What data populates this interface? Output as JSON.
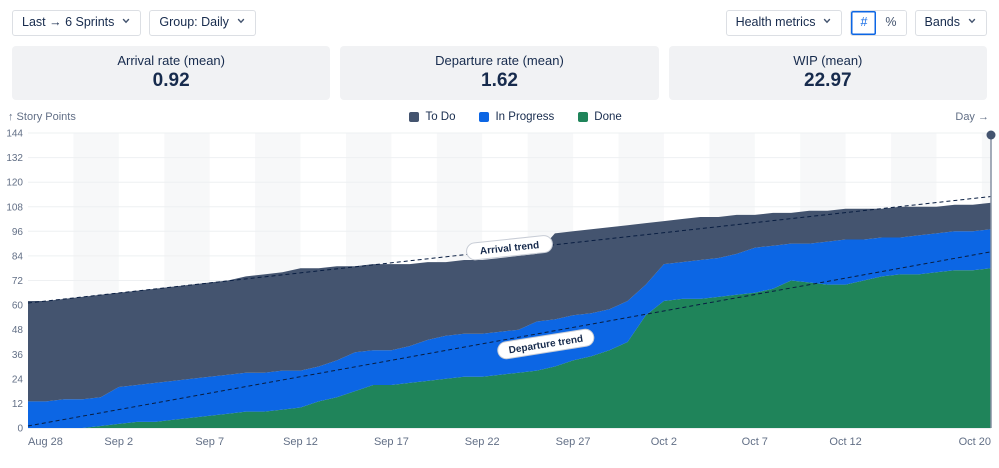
{
  "toolbar": {
    "sprint_range": "Last → 6 Sprints",
    "group": "Group: Daily",
    "health_metrics": "Health metrics",
    "number_toggle": "#",
    "percent_toggle": "%",
    "bands": "Bands"
  },
  "stats": [
    {
      "label": "Arrival rate (mean)",
      "value": "0.92"
    },
    {
      "label": "Departure rate (mean)",
      "value": "1.62"
    },
    {
      "label": "WIP (mean)",
      "value": "22.97"
    }
  ],
  "chart_data": {
    "type": "area",
    "stacked": true,
    "y_axis": {
      "min": 0,
      "max": 144,
      "step": 12,
      "title": "↑ Story Points"
    },
    "x_axis": {
      "title": "Day →",
      "ticks": [
        {
          "day": 0,
          "label": "Aug 28"
        },
        {
          "day": 5,
          "label": "Sep 2"
        },
        {
          "day": 10,
          "label": "Sep 7"
        },
        {
          "day": 15,
          "label": "Sep 12"
        },
        {
          "day": 20,
          "label": "Sep 17"
        },
        {
          "day": 25,
          "label": "Sep 22"
        },
        {
          "day": 30,
          "label": "Sep 27"
        },
        {
          "day": 35,
          "label": "Oct 2"
        },
        {
          "day": 40,
          "label": "Oct 7"
        },
        {
          "day": 45,
          "label": "Oct 12"
        },
        {
          "day": 53,
          "label": "Oct 20"
        }
      ]
    },
    "series": [
      {
        "name": "To Do",
        "color": "#44546f",
        "values": [
          49,
          49,
          49,
          50,
          50,
          46,
          46,
          46,
          46,
          46,
          46,
          46,
          47,
          48,
          48,
          50,
          48,
          46,
          42,
          42,
          42,
          40,
          38,
          36,
          36,
          36,
          36,
          36,
          33,
          42,
          41,
          41,
          40,
          37,
          30,
          21,
          21,
          21,
          20,
          19,
          16,
          16,
          15,
          16,
          15,
          15,
          15,
          14,
          15,
          14,
          13,
          13,
          13,
          13
        ]
      },
      {
        "name": "In Progress",
        "color": "#0c66e4",
        "values": [
          13,
          13,
          14,
          14,
          14,
          18,
          18,
          19,
          19,
          19,
          19,
          19,
          19,
          19,
          19,
          18,
          17,
          18,
          19,
          17,
          17,
          18,
          20,
          21,
          21,
          21,
          21,
          21,
          24,
          23,
          22,
          21,
          20,
          20,
          15,
          18,
          18,
          19,
          19,
          20,
          22,
          21,
          18,
          19,
          21,
          22,
          20,
          19,
          18,
          19,
          19,
          19,
          19,
          19
        ]
      },
      {
        "name": "Done",
        "color": "#1f845a",
        "values": [
          0,
          0,
          0,
          0,
          1,
          2,
          3,
          3,
          4,
          5,
          6,
          7,
          8,
          8,
          9,
          10,
          13,
          15,
          18,
          21,
          21,
          22,
          23,
          24,
          25,
          25,
          26,
          27,
          28,
          30,
          33,
          35,
          38,
          42,
          55,
          62,
          63,
          63,
          64,
          65,
          66,
          68,
          72,
          71,
          70,
          70,
          72,
          74,
          75,
          75,
          76,
          77,
          77,
          78
        ]
      }
    ],
    "trend_lines": [
      {
        "name": "Arrival trend",
        "start": 61,
        "end": 113,
        "label_day": 26.5,
        "label_value": 88,
        "rotation": -6
      },
      {
        "name": "Departure trend",
        "start": 1,
        "end": 86,
        "label_day": 28.5,
        "label_value": 41,
        "rotation": -9
      }
    ],
    "marker": {
      "day": 53,
      "value": 144
    },
    "band_color": "#f7f8f9",
    "grid_color": "#eef0f2",
    "trend_color": "#091e42"
  }
}
